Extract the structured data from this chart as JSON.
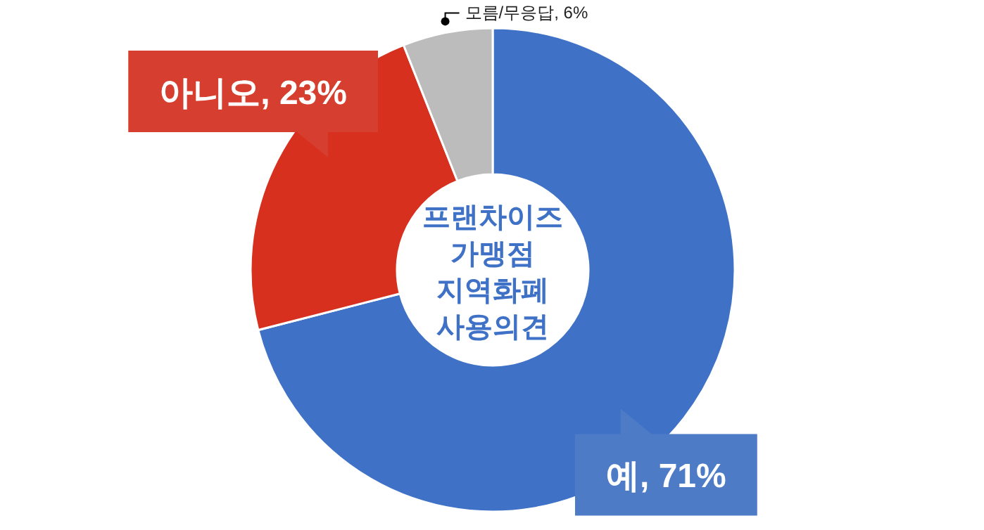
{
  "chart_data": {
    "type": "donut",
    "title": "프랜차이즈 가맹점 지역화폐 사용의견",
    "categories": [
      "예, 71%",
      "아니오, 23%",
      "모름/무응답, 6%"
    ],
    "values": [
      71,
      23,
      6
    ],
    "colors": [
      "#3f72c6",
      "#d8301f",
      "#bcbcbc"
    ],
    "legend": false
  }
}
